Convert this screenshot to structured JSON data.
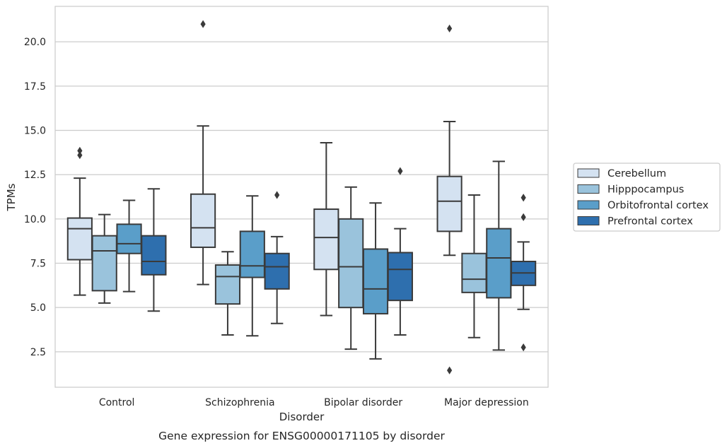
{
  "caption": "Gene expression for ENSG00000171105 by disorder",
  "chart_data": {
    "type": "box",
    "xlabel": "Disorder",
    "ylabel": "TPMs",
    "ylim": [
      0.5,
      22.0
    ],
    "yticks": [
      2.5,
      5.0,
      7.5,
      10.0,
      12.5,
      15.0,
      17.5,
      20.0
    ],
    "ytick_labels": [
      "2.5",
      "5.0",
      "7.5",
      "10.0",
      "12.5",
      "15.0",
      "17.5",
      "20.0"
    ],
    "grid": "horizontal",
    "legend_position": "right",
    "categories": [
      "Control",
      "Schizophrenia",
      "Bipolar disorder",
      "Major depression"
    ],
    "series": [
      {
        "name": "Cerebellum",
        "color": "#d4e2f1",
        "boxes": [
          {
            "whislo": 5.7,
            "q1": 7.7,
            "med": 9.45,
            "q3": 10.05,
            "whishi": 12.3,
            "fliers": [
              13.6,
              13.85
            ]
          },
          {
            "whislo": 6.3,
            "q1": 8.4,
            "med": 9.5,
            "q3": 11.4,
            "whishi": 15.25,
            "fliers": [
              21.0
            ]
          },
          {
            "whislo": 4.55,
            "q1": 7.15,
            "med": 8.95,
            "q3": 10.55,
            "whishi": 14.3,
            "fliers": []
          },
          {
            "whislo": 7.95,
            "q1": 9.3,
            "med": 11.0,
            "q3": 12.4,
            "whishi": 15.5,
            "fliers": [
              1.45,
              20.75
            ]
          }
        ]
      },
      {
        "name": "Hipppocampus",
        "color": "#9ac3dc",
        "boxes": [
          {
            "whislo": 5.25,
            "q1": 5.95,
            "med": 8.2,
            "q3": 9.05,
            "whishi": 10.25,
            "fliers": []
          },
          {
            "whislo": 3.45,
            "q1": 5.2,
            "med": 6.75,
            "q3": 7.4,
            "whishi": 8.15,
            "fliers": []
          },
          {
            "whislo": 2.65,
            "q1": 5.0,
            "med": 7.3,
            "q3": 10.0,
            "whishi": 11.8,
            "fliers": []
          },
          {
            "whislo": 3.3,
            "q1": 5.85,
            "med": 6.6,
            "q3": 8.05,
            "whishi": 11.35,
            "fliers": []
          }
        ]
      },
      {
        "name": "Orbitofrontal cortex",
        "color": "#5a9ec9",
        "boxes": [
          {
            "whislo": 5.9,
            "q1": 8.05,
            "med": 8.6,
            "q3": 9.7,
            "whishi": 11.05,
            "fliers": []
          },
          {
            "whislo": 3.4,
            "q1": 6.7,
            "med": 7.35,
            "q3": 9.3,
            "whishi": 11.3,
            "fliers": []
          },
          {
            "whislo": 2.1,
            "q1": 4.65,
            "med": 6.05,
            "q3": 8.3,
            "whishi": 10.9,
            "fliers": []
          },
          {
            "whislo": 2.6,
            "q1": 5.55,
            "med": 7.8,
            "q3": 9.45,
            "whishi": 13.25,
            "fliers": []
          }
        ]
      },
      {
        "name": "Prefrontal cortex",
        "color": "#2e6fae",
        "boxes": [
          {
            "whislo": 4.8,
            "q1": 6.85,
            "med": 7.6,
            "q3": 9.05,
            "whishi": 11.7,
            "fliers": []
          },
          {
            "whislo": 4.1,
            "q1": 6.05,
            "med": 7.3,
            "q3": 8.05,
            "whishi": 9.0,
            "fliers": [
              11.35
            ]
          },
          {
            "whislo": 3.45,
            "q1": 5.4,
            "med": 7.15,
            "q3": 8.1,
            "whishi": 9.45,
            "fliers": [
              12.7
            ]
          },
          {
            "whislo": 4.9,
            "q1": 6.25,
            "med": 6.95,
            "q3": 7.6,
            "whishi": 8.7,
            "fliers": [
              2.75,
              10.1,
              11.2
            ]
          }
        ]
      }
    ]
  }
}
